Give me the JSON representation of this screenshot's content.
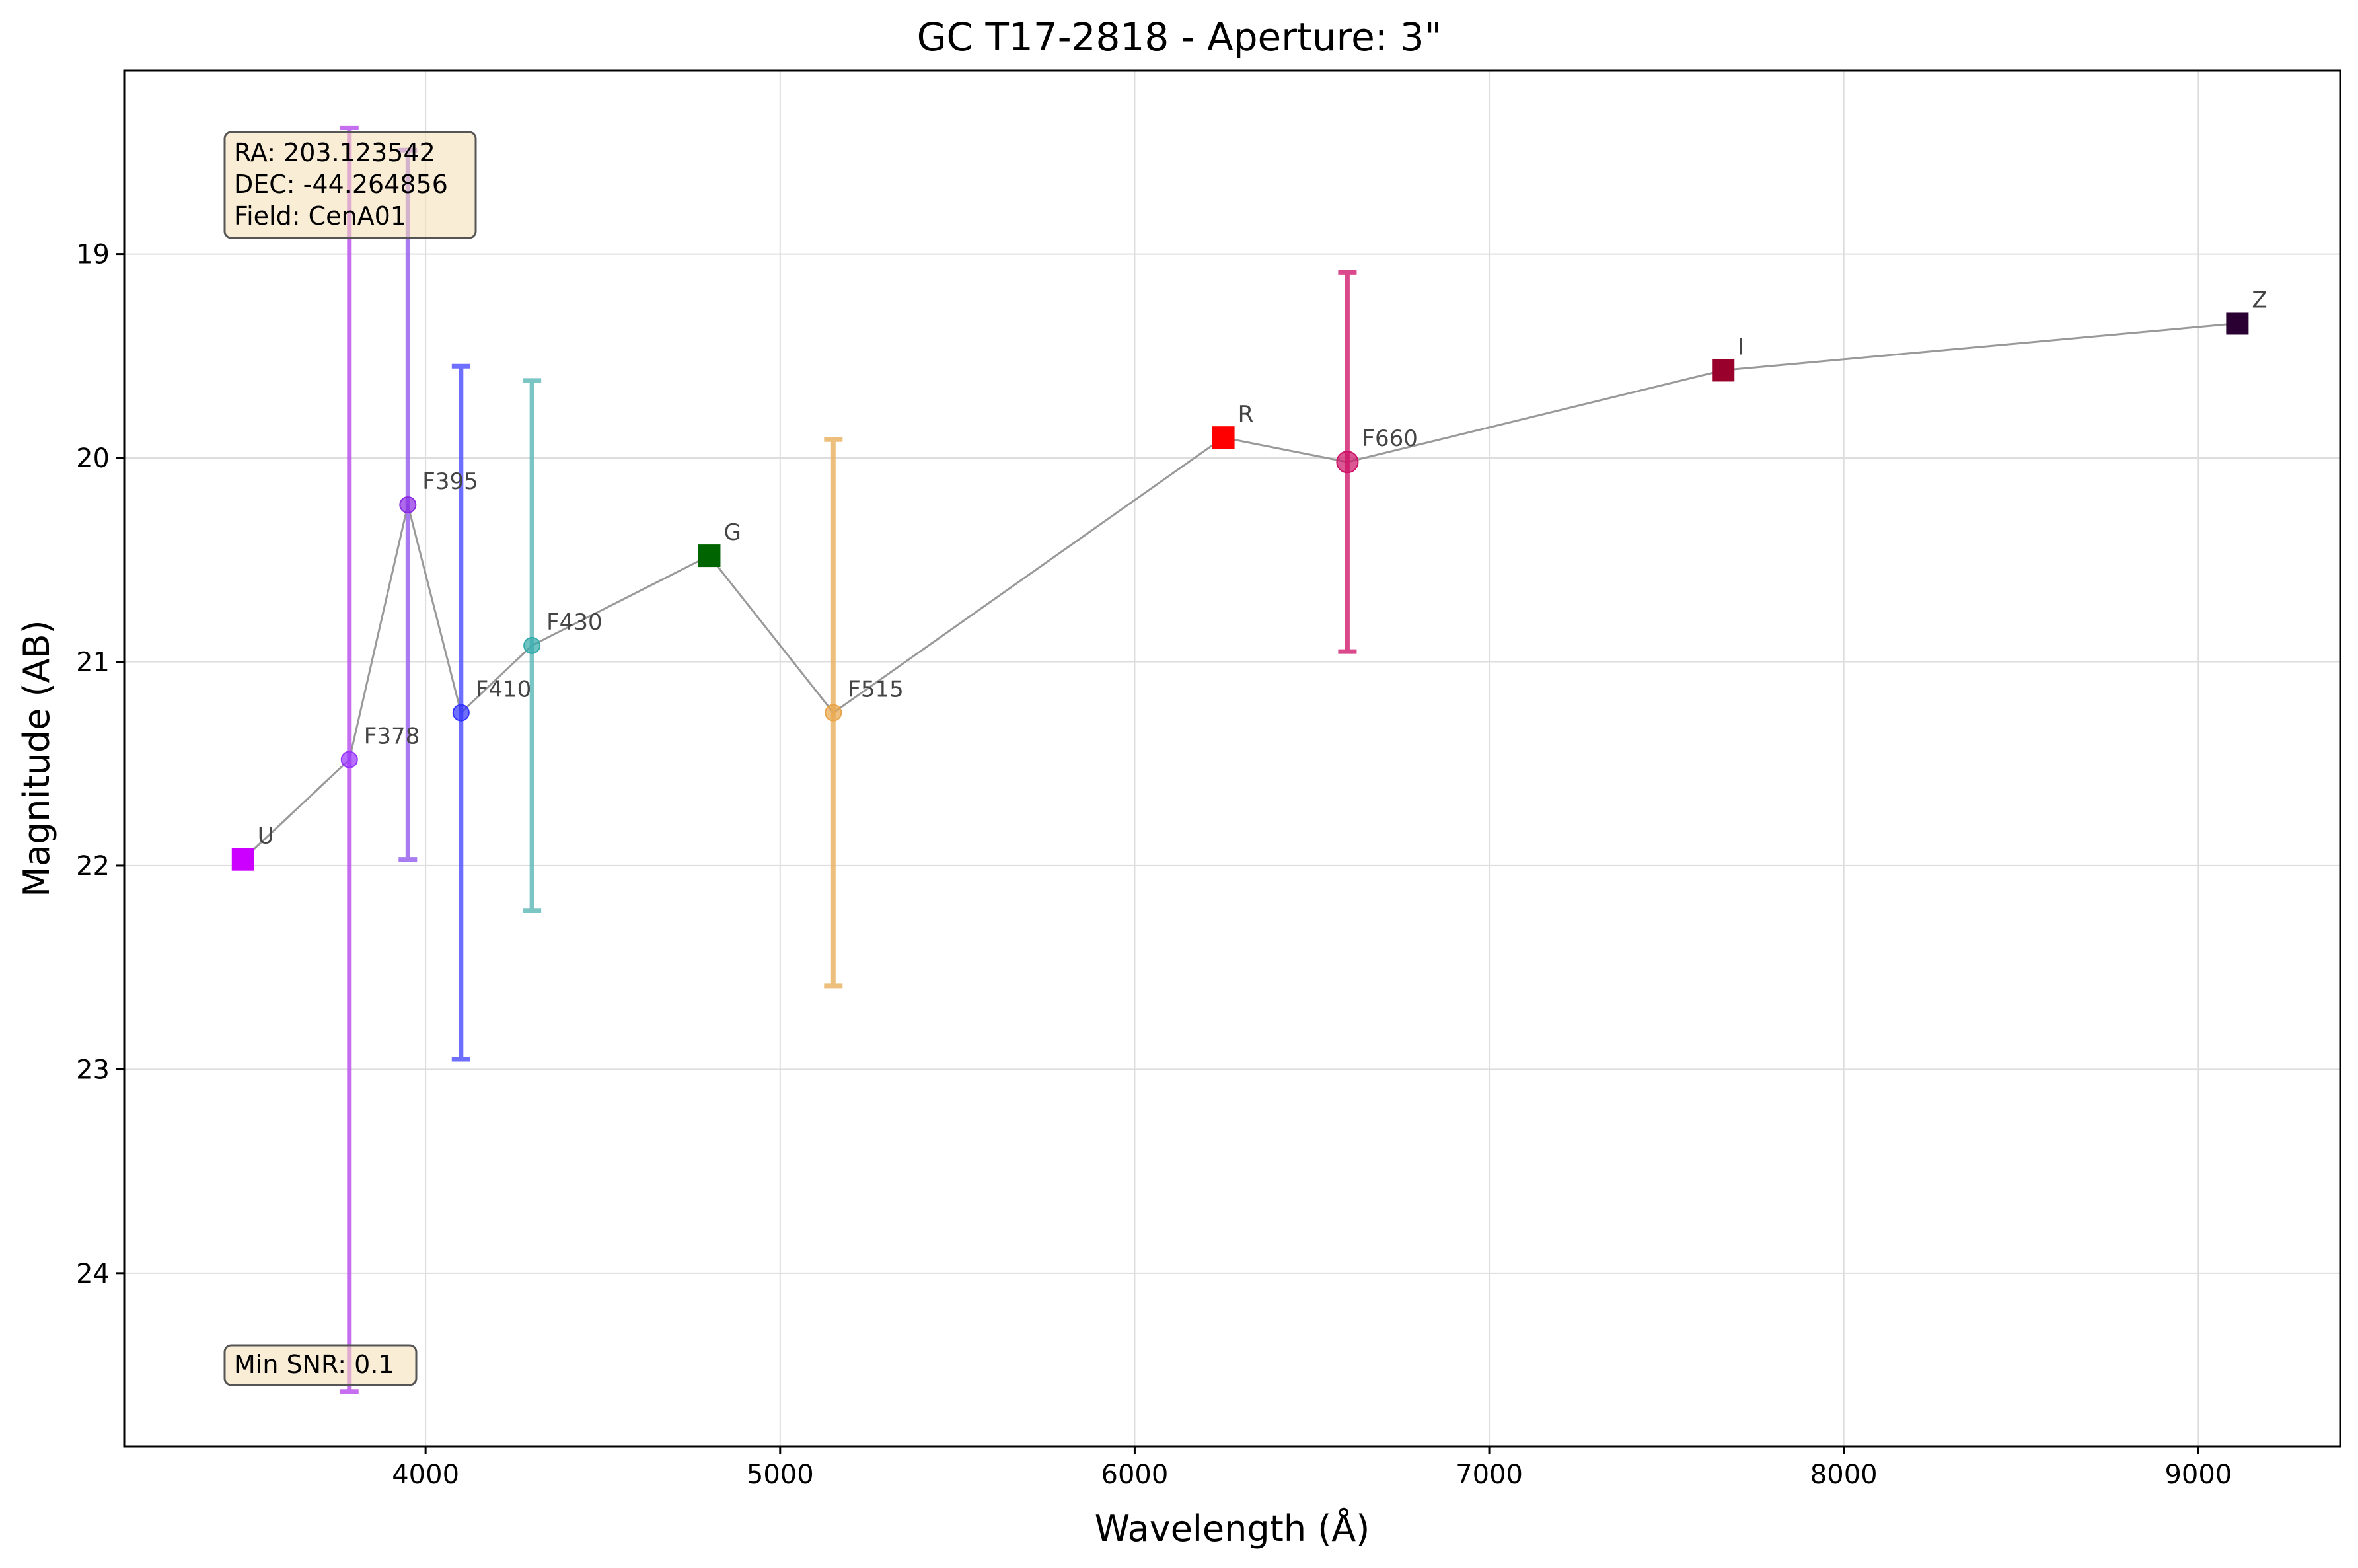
{
  "chart_data": {
    "type": "scatter",
    "title": "GC T17-2818 - Aperture: 3\"",
    "xlabel": "Wavelength (Å)",
    "ylabel": "Magnitude (AB)",
    "xlim": [
      3150,
      9400
    ],
    "ylim": [
      24.85,
      18.1
    ],
    "y_inverted": true,
    "grid": true,
    "x_ticks": [
      4000,
      5000,
      6000,
      7000,
      8000,
      9000
    ],
    "y_ticks": [
      19,
      20,
      21,
      22,
      23,
      24
    ],
    "info_box": {
      "ra": "RA: 203.123542",
      "dec": "DEC: -44.264856",
      "field": "Field: CenA01"
    },
    "snr_box": "Min SNR: 0.1",
    "connector_color": "#999999",
    "points": [
      {
        "filter": "U",
        "x": 3485,
        "y": 21.97,
        "marker": "square",
        "color": "#cc00ff",
        "err": null
      },
      {
        "filter": "F378",
        "x": 3785,
        "y": 21.48,
        "marker": "circle",
        "color": "#9933ff",
        "err": 3.1,
        "err_color": "#bb55ee"
      },
      {
        "filter": "F395",
        "x": 3950,
        "y": 20.23,
        "marker": "circle",
        "color": "#8a2be2",
        "err": 1.74,
        "err_color": "#9966ee"
      },
      {
        "filter": "F410",
        "x": 4100,
        "y": 21.25,
        "marker": "circle",
        "color": "#3333ff",
        "err": 1.7,
        "err_color": "#5555ff"
      },
      {
        "filter": "F430",
        "x": 4300,
        "y": 20.92,
        "marker": "circle",
        "color": "#33aaaa",
        "err": 1.3,
        "err_color": "#66bbbb"
      },
      {
        "filter": "G",
        "x": 4800,
        "y": 20.48,
        "marker": "square",
        "color": "#006400",
        "err": null
      },
      {
        "filter": "F515",
        "x": 5150,
        "y": 21.25,
        "marker": "circle",
        "color": "#e8a54a",
        "err": 1.34,
        "err_color": "#ebb466"
      },
      {
        "filter": "R",
        "x": 6250,
        "y": 19.9,
        "marker": "square",
        "color": "#ff0000",
        "err": null
      },
      {
        "filter": "F660",
        "x": 6600,
        "y": 20.02,
        "marker": "circle",
        "color": "#cc1166",
        "err": 0.93,
        "err_color": "#d42a77"
      },
      {
        "filter": "I",
        "x": 7660,
        "y": 19.57,
        "marker": "square",
        "color": "#99002b",
        "err": null
      },
      {
        "filter": "Z",
        "x": 9110,
        "y": 19.34,
        "marker": "square",
        "color": "#2a0033",
        "err": null
      }
    ]
  }
}
